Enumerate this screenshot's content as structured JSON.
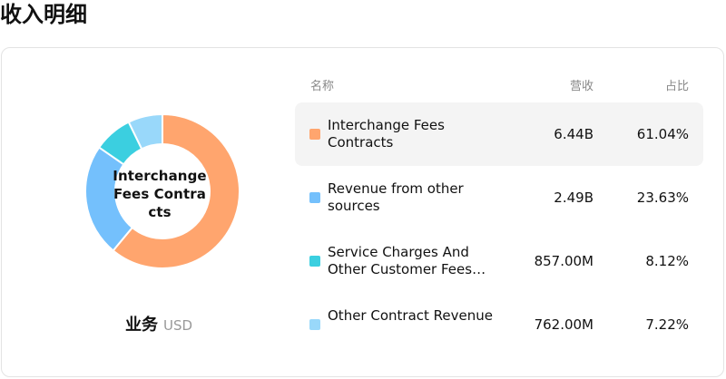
{
  "page": {
    "title": "收入明细"
  },
  "segment": {
    "title": "业务",
    "currency": "USD",
    "center_label": "Interchange Fees Contracts"
  },
  "table": {
    "headers": {
      "name": "名称",
      "revenue": "营收",
      "percent": "占比"
    },
    "rows": [
      {
        "name": "Interchange Fees Contracts",
        "revenue": "6.44B",
        "percent": "61.04%",
        "color": "#FFA56E",
        "active": true
      },
      {
        "name": "Revenue from other sources",
        "revenue": "2.49B",
        "percent": "23.63%",
        "color": "#74C0FC",
        "active": false
      },
      {
        "name": "Service Charges And Other Customer Fees…",
        "revenue": "857.00M",
        "percent": "8.12%",
        "color": "#3BCFE0",
        "active": false
      },
      {
        "name": "Other Contract Revenue",
        "revenue": "762.00M",
        "percent": "7.22%",
        "color": "#99D8FA",
        "active": false
      }
    ]
  },
  "chart_data": {
    "type": "pie",
    "categories": [
      "Interchange Fees Contracts",
      "Revenue from other sources",
      "Service Charges And Other Customer Fees…",
      "Other Contract Revenue"
    ],
    "values": [
      61.04,
      23.63,
      8.12,
      7.22
    ],
    "colors": [
      "#FFA56E",
      "#74C0FC",
      "#3BCFE0",
      "#99D8FA"
    ]
  }
}
